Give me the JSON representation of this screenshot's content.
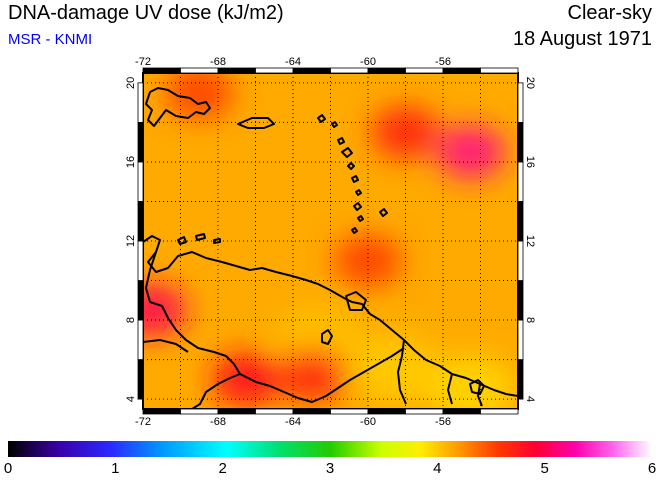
{
  "header": {
    "title": "DNA-damage UV dose (kJ/m2)",
    "subtitle": "MSR - KNMI",
    "sky": "Clear-sky",
    "date": "18 August 1971"
  },
  "map": {
    "lon_ticks": [
      "-72",
      "-68",
      "-64",
      "-60",
      "-56"
    ],
    "lat_ticks": [
      "20",
      "16",
      "12",
      "8",
      "4"
    ],
    "lon_range": [
      -72,
      -52
    ],
    "lat_range": [
      3.5,
      20.5
    ],
    "background_color": "#ffaa00",
    "hot_spots": [
      {
        "lon": -54.5,
        "lat": 16.5,
        "value": 4.6
      },
      {
        "lon": -71.5,
        "lat": 8.5,
        "value": 4.5
      },
      {
        "lon": -66.5,
        "lat": 5.0,
        "value": 4.4
      },
      {
        "lon": -63.0,
        "lat": 5.2,
        "value": 4.3
      },
      {
        "lon": -58.0,
        "lat": 17.5,
        "value": 4.3
      },
      {
        "lon": -60.0,
        "lat": 11.0,
        "value": 4.2
      },
      {
        "lon": -69.0,
        "lat": 19.5,
        "value": 4.2
      }
    ],
    "cool_spots": [
      {
        "lon": -58.5,
        "lat": 5.5,
        "value": 3.7
      },
      {
        "lon": -54.5,
        "lat": 4.5,
        "value": 3.6
      },
      {
        "lon": -62.5,
        "lat": 7.0,
        "value": 3.8
      }
    ]
  },
  "colorbar": {
    "labels": [
      "0",
      "1",
      "2",
      "3",
      "4",
      "5",
      "6"
    ],
    "min": 0,
    "max": 6
  }
}
